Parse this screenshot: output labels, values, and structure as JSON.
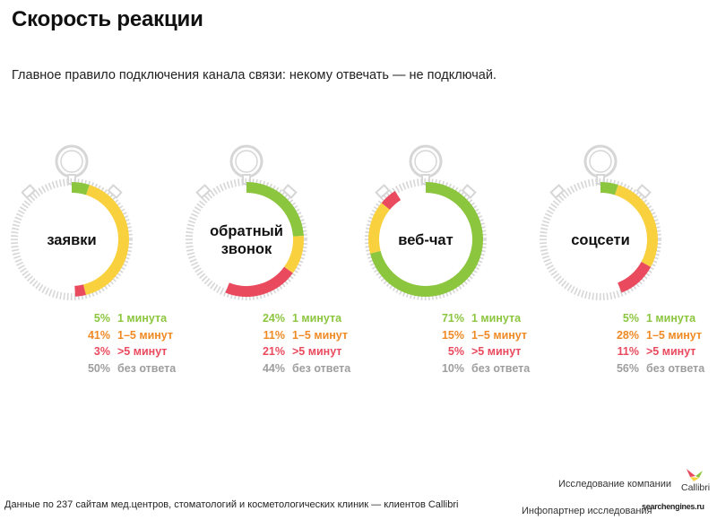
{
  "title": "Скорость реакции",
  "subtitle": "Главное правило подключения канала связи: некому отвечать — не подключай.",
  "colors": {
    "green": "#8cc63f",
    "yellow": "#f9d13e",
    "red": "#ea4a5e",
    "gray": "#9e9e9e",
    "orange_text": "#f08a24",
    "ring_gray": "#d6d6d6"
  },
  "chart_data": {
    "type": "pie",
    "categories": [
      "1 минута",
      "1–5 минут",
      ">5 минут",
      "без ответа"
    ],
    "series": [
      {
        "name": "заявки",
        "label_lines": [
          "заявки"
        ],
        "values": [
          5,
          41,
          3,
          50
        ],
        "pct_labels": [
          "5%",
          "41%",
          "3%",
          "50%"
        ]
      },
      {
        "name": "обратный звонок",
        "label_lines": [
          "обратный",
          "звонок"
        ],
        "values": [
          24,
          11,
          21,
          44
        ],
        "pct_labels": [
          "24%",
          "11%",
          "21%",
          "44%"
        ]
      },
      {
        "name": "веб-чат",
        "label_lines": [
          "веб-чат"
        ],
        "values": [
          71,
          15,
          5,
          10
        ],
        "pct_labels": [
          "71%",
          "15%",
          "5%",
          "10%"
        ]
      },
      {
        "name": "соцсети",
        "label_lines": [
          "соцсети"
        ],
        "values": [
          5,
          28,
          11,
          56
        ],
        "pct_labels": [
          "5%",
          "28%",
          "11%",
          "56%"
        ]
      }
    ]
  },
  "footer": {
    "source": "Данные по 237 сайтам мед.центров, стоматологий и косметологических клиник  — клиентов Callibri",
    "credit_company": "Исследование компании",
    "credit_partner": "Инфопартнер исследования",
    "logo_company": "Callibri",
    "logo_partner": "searchengines.ru"
  }
}
